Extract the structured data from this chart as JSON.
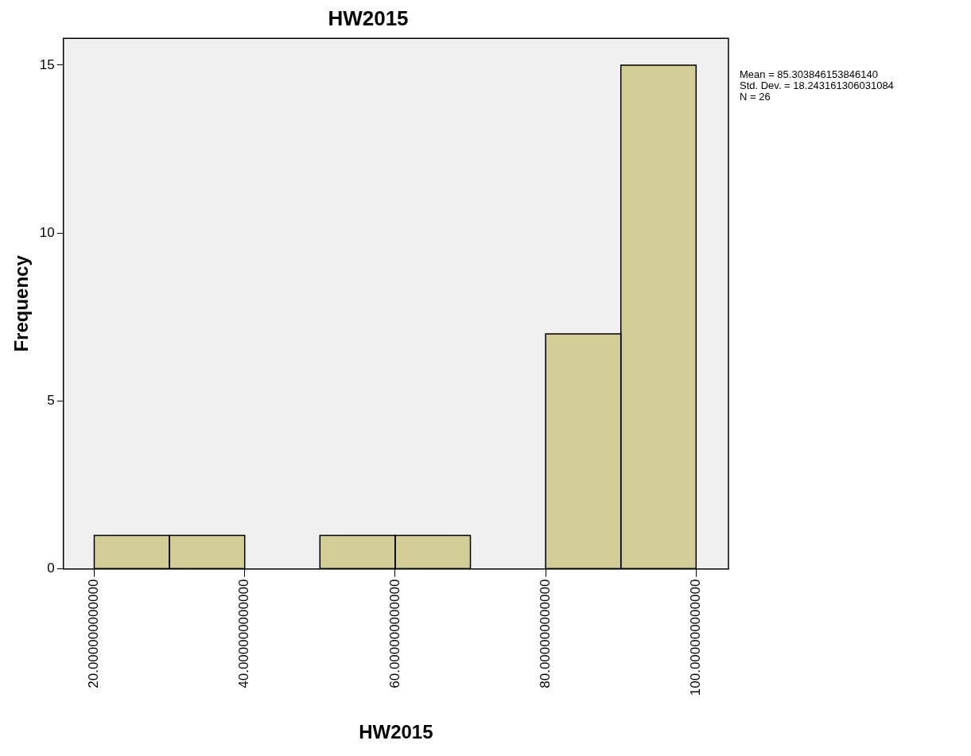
{
  "chart_data": {
    "type": "histogram",
    "title": "HW2015",
    "xlabel": "HW2015",
    "ylabel": "Frequency",
    "bins": [
      20,
      30,
      40,
      50,
      60,
      70,
      80,
      90,
      100
    ],
    "values": [
      1,
      1,
      0,
      1,
      1,
      0,
      7,
      15
    ],
    "color": "#d3ce97",
    "xlim": [
      15.9,
      104.3
    ],
    "xticks": [
      {
        "value": 20,
        "label": "20.000000000000"
      },
      {
        "value": 40,
        "label": "40.000000000000"
      },
      {
        "value": 60,
        "label": "60.000000000000"
      },
      {
        "value": 80,
        "label": "80.000000000000"
      },
      {
        "value": 100,
        "label": "100.000000000000"
      }
    ],
    "ylim": [
      0,
      15.8
    ],
    "yticks": [
      0,
      5,
      10,
      15
    ],
    "grid": false,
    "legend": false,
    "annotations": [
      "Mean = 85.303846153846140",
      "Std. Dev. = 18.243161306031084",
      "N = 26"
    ]
  }
}
